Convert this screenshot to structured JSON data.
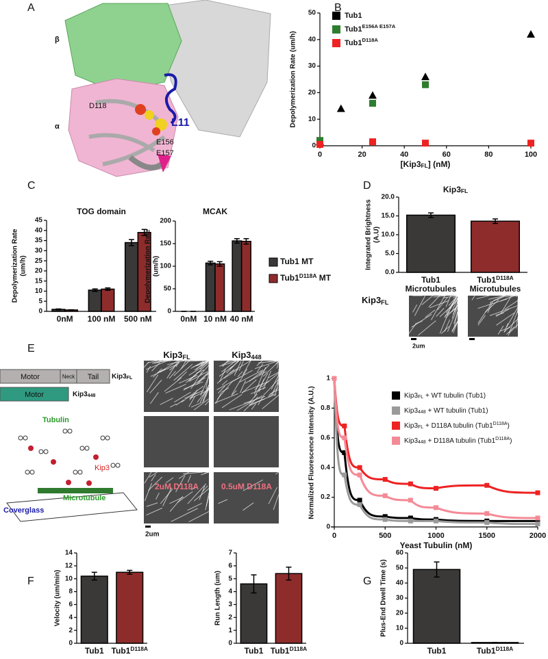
{
  "panels": [
    "A",
    "B",
    "C",
    "D",
    "E",
    "F",
    "G"
  ],
  "structure": {
    "labels": [
      "β",
      "α",
      "D118",
      "L11",
      "E156",
      "E157"
    ]
  },
  "chart_data": [
    {
      "type": "scatter",
      "x_label": [
        {
          "text": "[Kip3"
        },
        {
          "sub": "FL"
        },
        {
          "text": "] (nM)"
        }
      ],
      "y_label": "Depolymerization Rate  (um/h)",
      "xlim": [
        0,
        100
      ],
      "ylim": [
        0,
        50
      ],
      "xticks": [
        0,
        20,
        40,
        60,
        80,
        100
      ],
      "yticks": [
        0,
        10,
        20,
        30,
        40,
        50
      ],
      "legend": "top-left",
      "series": [
        {
          "name": "Tub1",
          "color": "#000000",
          "marker": "triangle",
          "x": [
            0,
            10,
            25,
            50,
            100
          ],
          "values": [
            1.5,
            14,
            19,
            26,
            42
          ]
        },
        {
          "name": [
            {
              "text": "Tub1"
            },
            {
              "sup": "E156A E157A"
            }
          ],
          "color": "#2e7d2e",
          "marker": "square",
          "x": [
            0,
            25,
            50
          ],
          "values": [
            2,
            16,
            23
          ]
        },
        {
          "name": [
            {
              "text": "Tub1"
            },
            {
              "sup": "D118A"
            }
          ],
          "color": "#ee2222",
          "marker": "square",
          "x": [
            0,
            25,
            50,
            100
          ],
          "values": [
            0.5,
            1.5,
            1,
            1
          ]
        }
      ]
    },
    {
      "type": "bar",
      "title": "TOG domain",
      "y_label": [
        "Depolymerization Rate",
        "(um/h)"
      ],
      "categories": [
        "0nM",
        "100 nM",
        "500 nM"
      ],
      "ylim": [
        0,
        45
      ],
      "yticks": [
        0,
        5,
        10,
        15,
        20,
        25,
        30,
        35,
        40,
        45
      ],
      "series": [
        {
          "color": "#3b3838",
          "values": [
            1,
            10.5,
            34
          ],
          "errors": [
            0.2,
            0.6,
            1.5
          ]
        },
        {
          "color": "#8e2c2c",
          "values": [
            0.7,
            11,
            39
          ],
          "errors": [
            0.1,
            0.6,
            1.5
          ]
        }
      ]
    },
    {
      "type": "bar",
      "title": "MCAK",
      "y_label": [
        "Depolymerization Rate",
        "(um/h)"
      ],
      "categories": [
        "0nM",
        "10 nM",
        "40 nM"
      ],
      "ylim": [
        0,
        200
      ],
      "yticks": [
        0,
        50,
        100,
        150,
        200
      ],
      "legend": "right",
      "series": [
        {
          "name": "Tub1 MT",
          "color": "#3b3838",
          "values": [
            0,
            107,
            156
          ],
          "errors": [
            0,
            4,
            5
          ]
        },
        {
          "name": [
            {
              "text": "Tub1"
            },
            {
              "sup": "D118A"
            },
            {
              "text": " MT"
            }
          ],
          "color": "#8e2c2c",
          "values": [
            0,
            105,
            155
          ],
          "errors": [
            0,
            5,
            6
          ]
        }
      ]
    },
    {
      "type": "bar",
      "title": [
        {
          "text": "Kip3"
        },
        {
          "sub": "FL"
        }
      ],
      "y_label": [
        "Integrated Brightness",
        "(A.U)"
      ],
      "categories": [
        [
          "Tub1",
          "Microtubules"
        ],
        [
          [
            {
              "text": "Tub1"
            },
            {
              "sup": "D118A"
            }
          ],
          "Microtubules"
        ]
      ],
      "ylim": [
        0,
        20
      ],
      "yticks": [
        {
          "value": 0,
          "label": "0.0"
        },
        {
          "value": 5,
          "label": "5.0"
        },
        {
          "value": 10,
          "label": "10.0"
        },
        {
          "value": 15,
          "label": "15.0"
        },
        {
          "value": 20,
          "label": "20.0"
        }
      ],
      "values": [
        15.2,
        13.6
      ],
      "errors": [
        0.6,
        0.6
      ],
      "colors": [
        "#3b3838",
        "#8e2c2c"
      ]
    },
    {
      "type": "line",
      "x_label": "Yeast Tubulin (nM)",
      "y_label": "Normalized Fluorescence Intensity (A.U.)",
      "xlim": [
        0,
        2000
      ],
      "ylim": [
        0,
        1
      ],
      "xticks": [
        0,
        500,
        1000,
        1500,
        2000
      ],
      "yticks": [
        0,
        0.2,
        0.4,
        0.6,
        0.8,
        1
      ],
      "legend": "top-right",
      "x": [
        0,
        100,
        250,
        500,
        750,
        1000,
        1500,
        2000
      ],
      "series": [
        {
          "name": [
            {
              "text": "Kip3"
            },
            {
              "sub": "FL"
            },
            {
              "text": " + WT tubulin (Tub1)"
            }
          ],
          "color": "#000000",
          "values": [
            1,
            0.5,
            0.18,
            0.07,
            0.06,
            0.05,
            0.04,
            0.04
          ]
        },
        {
          "name": [
            {
              "text": "Kip3"
            },
            {
              "sub": "448"
            },
            {
              "text": " + WT tubulin (Tub1)"
            }
          ],
          "color": "#9a9a9a",
          "values": [
            1,
            0.35,
            0.15,
            0.05,
            0.04,
            0.04,
            0.03,
            0.02
          ]
        },
        {
          "name": [
            {
              "text": "Kip3"
            },
            {
              "sub": "FL"
            },
            {
              "text": " + D118A tubulin (Tub1"
            },
            {
              "sup": "D118A"
            },
            {
              "text": ")"
            }
          ],
          "color": "#ee2222",
          "values": [
            1,
            0.68,
            0.4,
            0.32,
            0.29,
            0.26,
            0.28,
            0.23
          ]
        },
        {
          "name": [
            {
              "text": "Kip3"
            },
            {
              "sub": "448"
            },
            {
              "text": " + D118A tubulin (Tub1"
            },
            {
              "sup": "D118A"
            },
            {
              "text": ")"
            }
          ],
          "color": "#f48a96",
          "values": [
            1,
            0.6,
            0.35,
            0.21,
            0.18,
            0.13,
            0.09,
            0.06
          ]
        }
      ]
    },
    {
      "type": "bar",
      "y_label": "Velocity (um/min)",
      "categories": [
        "Tub1",
        [
          {
            "text": "Tub1"
          },
          {
            "sup": "D118A"
          }
        ]
      ],
      "ylim": [
        0,
        14
      ],
      "yticks": [
        0,
        2,
        4,
        6,
        8,
        10,
        12,
        14
      ],
      "values": [
        10.4,
        11
      ],
      "errors": [
        0.6,
        0.3
      ],
      "colors": [
        "#3b3838",
        "#8e2c2c"
      ]
    },
    {
      "type": "bar",
      "y_label": "Run Length (um)",
      "categories": [
        "Tub1",
        [
          {
            "text": "Tub1"
          },
          {
            "sup": "D118A"
          }
        ]
      ],
      "ylim": [
        0,
        7
      ],
      "yticks": [
        0,
        1,
        2,
        3,
        4,
        5,
        6,
        7
      ],
      "values": [
        4.6,
        5.4
      ],
      "errors": [
        0.7,
        0.5
      ],
      "colors": [
        "#3b3838",
        "#8e2c2c"
      ]
    },
    {
      "type": "bar",
      "y_label": "Plus-End Dwell Time (s)",
      "categories": [
        "Tub1",
        [
          {
            "text": "Tub1"
          },
          {
            "sup": "D118A"
          }
        ]
      ],
      "ylim": [
        0,
        60
      ],
      "yticks": [
        0,
        10,
        20,
        30,
        40,
        50,
        60
      ],
      "values": [
        49,
        0.5
      ],
      "errors": [
        5,
        0
      ],
      "colors": [
        "#3b3838",
        "#3b3838"
      ]
    }
  ],
  "micrographs_d": {
    "label": [
      {
        "text": "Kip3"
      },
      {
        "sub": "FL"
      }
    ],
    "scale": "2um"
  },
  "diagram_e": {
    "fl_parts": [
      "Motor",
      "Neck",
      "Tail"
    ],
    "fl_name": [
      {
        "text": "Kip3"
      },
      {
        "sub": "FL"
      }
    ],
    "short_part": "Motor",
    "short_name": [
      {
        "text": "Kip3"
      },
      {
        "sub": "448"
      }
    ],
    "tubulin": "Tubulin",
    "kip3": "Kip3",
    "microtubule": "Microtubule",
    "coverglass": "Coverglass"
  },
  "micrographs_e": {
    "columns": [
      [
        {
          "text": "Kip3"
        },
        {
          "sub": "FL"
        }
      ],
      [
        {
          "text": "Kip3"
        },
        {
          "sub": "448"
        }
      ]
    ],
    "labels": [
      "2uM D118A",
      "0.5uM D118A"
    ],
    "scale": "2um"
  }
}
